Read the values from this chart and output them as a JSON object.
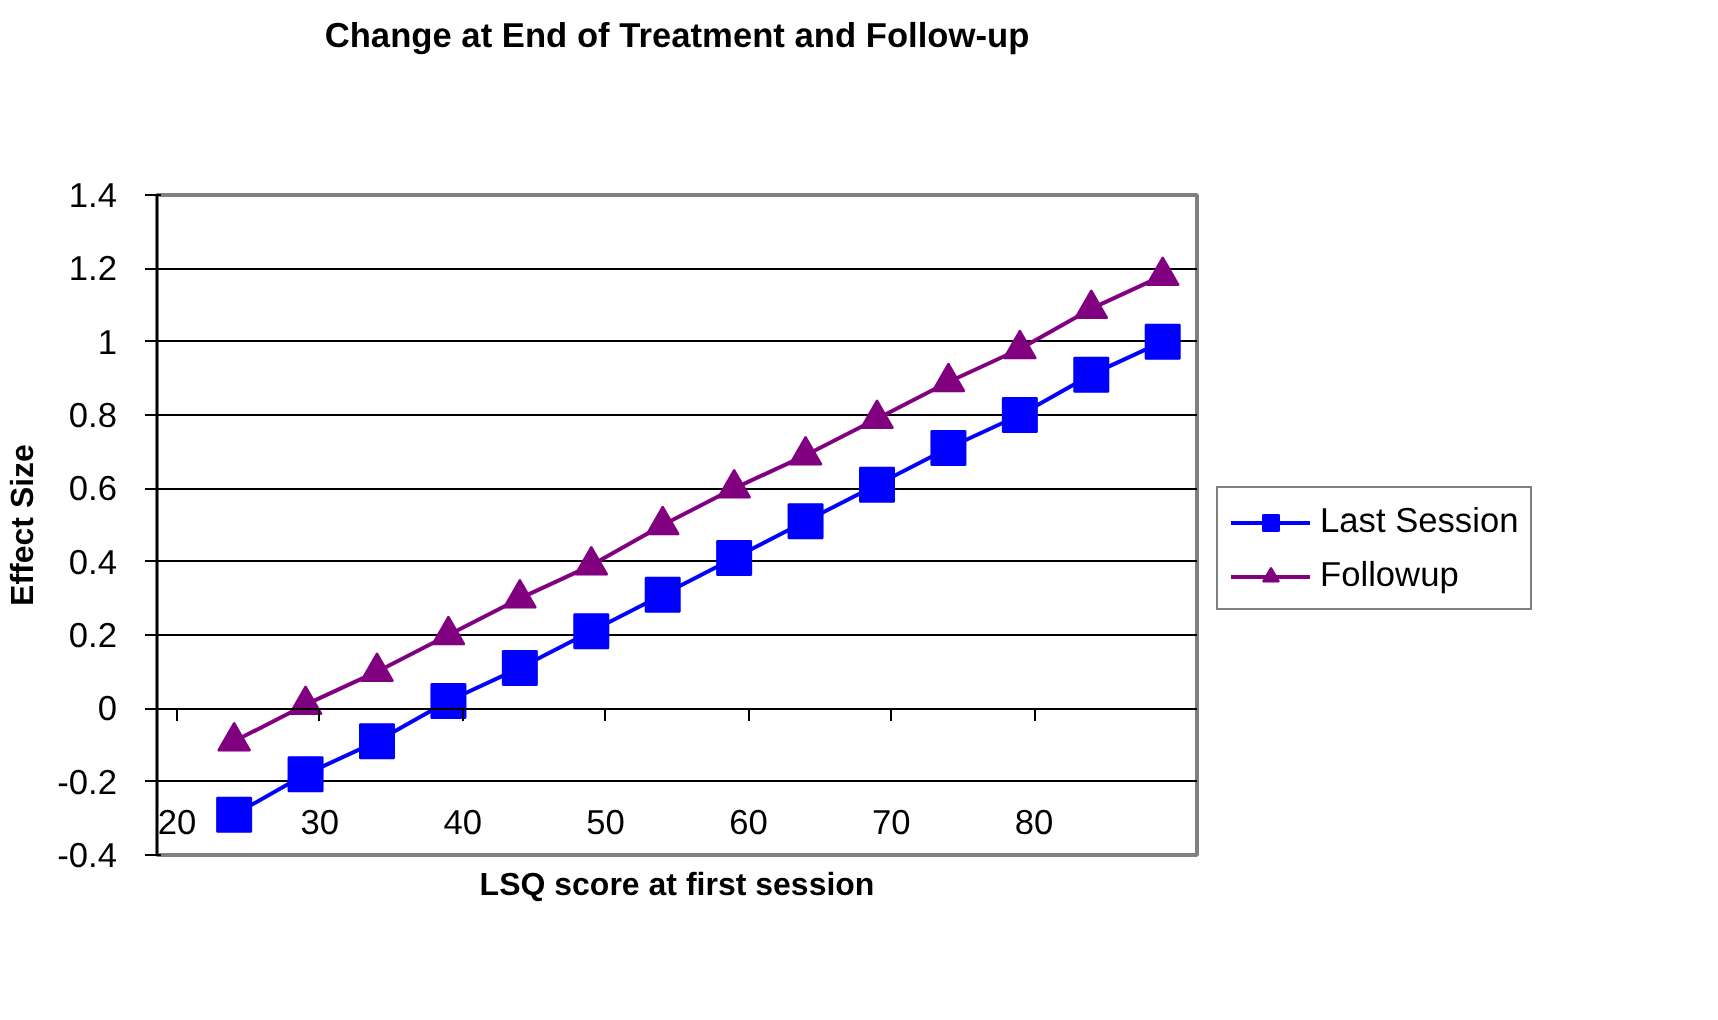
{
  "chart_data": {
    "type": "line",
    "title": "Change at End of Treatment and Follow-up",
    "xlabel": "LSQ score at first session",
    "ylabel": "Effect Size",
    "x": [
      24,
      29,
      34,
      39,
      44,
      49,
      54,
      59,
      64,
      69,
      74,
      79,
      84,
      89
    ],
    "series": [
      {
        "name": "Last Session",
        "color": "#0000ff",
        "marker": "square",
        "values": [
          -0.29,
          -0.18,
          -0.09,
          0.02,
          0.11,
          0.21,
          0.31,
          0.41,
          0.51,
          0.61,
          0.71,
          0.8,
          0.91,
          1.0
        ]
      },
      {
        "name": "Followup",
        "color": "#800080",
        "marker": "triangle",
        "values": [
          -0.09,
          0.01,
          0.1,
          0.2,
          0.3,
          0.39,
          0.5,
          0.6,
          0.69,
          0.79,
          0.89,
          0.98,
          1.09,
          1.18
        ]
      }
    ],
    "xlim": [
      18.6,
      91.4
    ],
    "xticks": [
      20,
      30,
      40,
      50,
      60,
      70,
      80
    ],
    "ylim": [
      -0.4,
      1.4
    ],
    "yticks": [
      -0.4,
      -0.2,
      0,
      0.2,
      0.4,
      0.6,
      0.8,
      1,
      1.2,
      1.4
    ],
    "grid": "y",
    "legend": "right",
    "line_style": "solid"
  }
}
